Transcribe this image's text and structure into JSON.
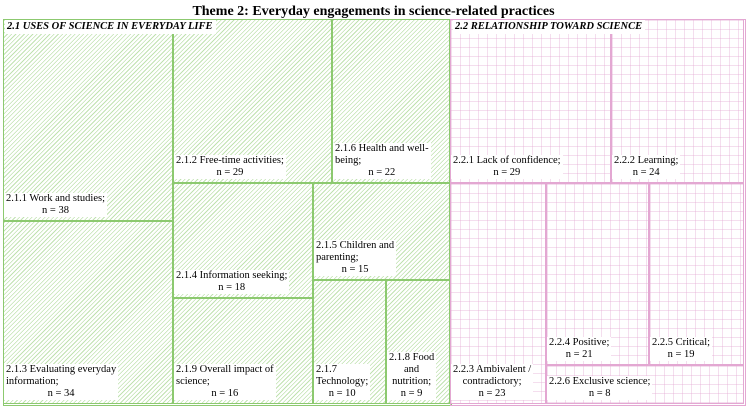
{
  "title": "Theme 2: Everyday engagements in science-related practices",
  "section_a": {
    "heading": "2.1 USES OF SCIENCE IN EVERYDAY LIFE",
    "color": "#8cc96f",
    "cells": [
      {
        "lines": [
          "2.1.1 Work and studies;"
        ],
        "n": "n = 38",
        "value": 38
      },
      {
        "lines": [
          "2.1.2 Free-time activities;"
        ],
        "n": "n = 29",
        "value": 29
      },
      {
        "lines": [
          "2.1.6 Health and well-",
          "being;"
        ],
        "n": "n = 22",
        "value": 22
      },
      {
        "lines": [
          "2.1.4 Information seeking;"
        ],
        "n": "n = 18",
        "value": 18
      },
      {
        "lines": [
          "2.1.5 Children and",
          "parenting;"
        ],
        "n": "n = 15",
        "value": 15
      },
      {
        "lines": [
          "2.1.3 Evaluating everyday",
          "information;"
        ],
        "n": "n = 34",
        "value": 34
      },
      {
        "lines": [
          "2.1.9 Overall impact of",
          "science;"
        ],
        "n": "n = 16",
        "value": 16
      },
      {
        "lines": [
          "2.1.7",
          "Technology;"
        ],
        "n": "n = 10",
        "value": 10
      },
      {
        "lines": [
          "2.1.8 Food",
          "and",
          "nutrition;"
        ],
        "n": "n = 9",
        "value": 9
      }
    ]
  },
  "section_b": {
    "heading": "2.2 RELATIONSHIP TOWARD SCIENCE",
    "color": "#e3a7d2",
    "cells": [
      {
        "lines": [
          "2.2.1 Lack of confidence;"
        ],
        "n": "n = 29",
        "value": 29
      },
      {
        "lines": [
          "2.2.2 Learning;"
        ],
        "n": "n = 24",
        "value": 24
      },
      {
        "lines": [
          "2.2.3 Ambivalent /",
          "contradictory;"
        ],
        "n": "n = 23",
        "value": 23
      },
      {
        "lines": [
          "2.2.4 Positive;"
        ],
        "n": "n = 21",
        "value": 21
      },
      {
        "lines": [
          "2.2.5 Critical;"
        ],
        "n": "n = 19",
        "value": 19
      },
      {
        "lines": [
          "2.2.6 Exclusive science;"
        ],
        "n": "n = 8",
        "value": 8
      }
    ]
  }
}
